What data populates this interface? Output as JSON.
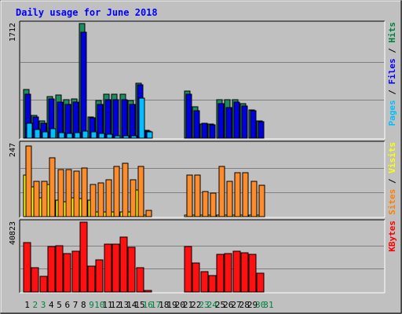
{
  "chart_data": {
    "type": "bar",
    "title": "Daily usage for June 2018",
    "categories": [
      "1",
      "2",
      "3",
      "4",
      "5",
      "6",
      "7",
      "8",
      "9",
      "10",
      "11",
      "12",
      "13",
      "14",
      "15",
      "16",
      "17",
      "18",
      "19",
      "20",
      "21",
      "22",
      "23",
      "24",
      "25",
      "26",
      "27",
      "28",
      "29",
      "30",
      "31"
    ],
    "weekend_days": [
      "2",
      "3",
      "9",
      "10",
      "16",
      "17",
      "23",
      "24",
      "30",
      "31"
    ],
    "panels": [
      {
        "id": "top",
        "max_label": "1712",
        "ymax": 1712,
        "legend": [
          {
            "text": "Pages",
            "color": "#00c0ff"
          },
          {
            "text": "Files",
            "color": "#0000ff"
          },
          {
            "text": "Hits",
            "color": "#008040"
          }
        ],
        "series": [
          {
            "name": "Hits",
            "color": "#1f8c60",
            "values": [
              730,
              340,
              260,
              620,
              640,
              580,
              590,
              1710,
              320,
              560,
              660,
              660,
              660,
              560,
              820,
              120,
              0,
              0,
              0,
              0,
              700,
              470,
              210,
              210,
              580,
              580,
              580,
              520,
              420,
              260,
              0
            ]
          },
          {
            "name": "Files",
            "color": "#0000dd",
            "values": [
              660,
              320,
              220,
              590,
              540,
              500,
              540,
              1580,
              300,
              510,
              580,
              570,
              580,
              510,
              800,
              100,
              0,
              0,
              0,
              0,
              660,
              410,
              220,
              200,
              520,
              460,
              540,
              480,
              410,
              250,
              0
            ]
          },
          {
            "name": "Pages",
            "color": "#00c0ff",
            "values": [
              220,
              130,
              90,
              140,
              80,
              70,
              80,
              100,
              90,
              70,
              60,
              30,
              40,
              40,
              600,
              90,
              0,
              0,
              0,
              0,
              0,
              0,
              0,
              0,
              0,
              0,
              0,
              0,
              0,
              0,
              0
            ]
          }
        ]
      },
      {
        "id": "mid",
        "max_label": "247",
        "ymax": 247,
        "legend": [
          {
            "text": "Sites",
            "color": "#ff8000"
          },
          {
            "text": "Visits",
            "color": "#ffff00"
          }
        ],
        "series": [
          {
            "name": "Visits",
            "color": "#ffff00",
            "values": [
              140,
              100,
              65,
              110,
              55,
              50,
              65,
              60,
              55,
              15,
              15,
              15,
              15,
              15,
              90,
              5,
              0,
              0,
              0,
              0,
              5,
              5,
              5,
              5,
              5,
              5,
              5,
              5,
              5,
              5,
              0
            ]
          },
          {
            "name": "Sites",
            "color": "#ff8c2a",
            "values": [
              240,
              120,
              120,
              200,
              160,
              160,
              155,
              165,
              110,
              115,
              125,
              170,
              180,
              125,
              170,
              20,
              0,
              0,
              0,
              0,
              140,
              140,
              85,
              80,
              170,
              120,
              150,
              150,
              120,
              105,
              0
            ]
          }
        ]
      },
      {
        "id": "bot",
        "max_label": "40823",
        "ymax": 40823,
        "legend": [
          {
            "text": "KBytes",
            "color": "#ff0000"
          }
        ],
        "series": [
          {
            "name": "KBytes",
            "color": "#ff1010",
            "values": [
              29000,
              14000,
              9000,
              26500,
              27000,
              22500,
              24000,
              40823,
              15000,
              19000,
              28000,
              28000,
              32000,
              26000,
              14000,
              900,
              0,
              0,
              0,
              0,
              26500,
              17000,
              12000,
              9500,
              21800,
              22500,
              24000,
              23000,
              22000,
              11000,
              0
            ]
          }
        ]
      }
    ]
  }
}
